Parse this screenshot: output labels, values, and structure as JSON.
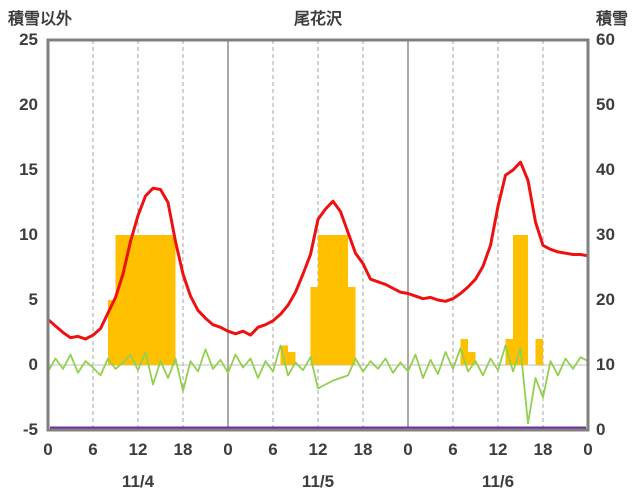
{
  "chart_data": {
    "type": "line",
    "title": "尾花沢",
    "left_axis": {
      "label": "積雪以外",
      "min": -5,
      "max": 25,
      "ticks": [
        25,
        20,
        15,
        10,
        5,
        0,
        -5
      ]
    },
    "right_axis": {
      "label": "積雪",
      "min": 0,
      "max": 60,
      "ticks": [
        60,
        50,
        40,
        30,
        20,
        10,
        0
      ]
    },
    "x_axis": {
      "hours_total": 72,
      "tick_step": 6,
      "tick_labels": [
        "0",
        "6",
        "12",
        "18",
        "0",
        "6",
        "12",
        "18",
        "0",
        "6",
        "12",
        "18",
        "0"
      ],
      "date_labels": [
        "11/4",
        "11/5",
        "11/6"
      ]
    },
    "colors": {
      "border": "#808080",
      "grid_dashed": "#a6a6a6",
      "grid_day": "#8c8c8c",
      "zero_line": "#bfbfbf",
      "temperature": "#ee1111",
      "sunshine": "#ffc000",
      "snowfall": "#92d050",
      "snowdepth": "#7030a0"
    },
    "series": [
      {
        "name": "temperature-line",
        "type": "line",
        "axis": "left",
        "color_key": "temperature",
        "values": [
          3.5,
          3.0,
          2.5,
          2.1,
          2.2,
          2.0,
          2.3,
          2.8,
          4.0,
          5.2,
          7.0,
          9.5,
          11.5,
          13.0,
          13.6,
          13.5,
          12.5,
          9.5,
          7.0,
          5.3,
          4.2,
          3.6,
          3.1,
          2.9,
          2.6,
          2.4,
          2.6,
          2.3,
          2.9,
          3.1,
          3.4,
          3.9,
          4.6,
          5.6,
          7.0,
          8.5,
          11.2,
          12.0,
          12.6,
          11.8,
          10.2,
          8.6,
          7.8,
          6.6,
          6.4,
          6.2,
          5.9,
          5.6,
          5.5,
          5.3,
          5.1,
          5.2,
          5.0,
          4.9,
          5.1,
          5.5,
          6.0,
          6.6,
          7.6,
          9.2,
          12.2,
          14.6,
          15.0,
          15.6,
          14.2,
          11.0,
          9.2,
          8.9,
          8.7,
          8.6,
          8.5,
          8.5,
          8.4
        ]
      },
      {
        "name": "sunshine-bars",
        "type": "bar",
        "axis": "left",
        "color_key": "sunshine",
        "bars": [
          [
            8,
            5
          ],
          [
            9,
            10
          ],
          [
            10,
            10
          ],
          [
            11,
            10
          ],
          [
            12,
            10
          ],
          [
            13,
            10
          ],
          [
            14,
            10
          ],
          [
            15,
            10
          ],
          [
            16,
            10
          ],
          [
            31,
            1.5
          ],
          [
            32,
            1
          ],
          [
            35,
            6
          ],
          [
            36,
            10
          ],
          [
            37,
            10
          ],
          [
            38,
            10
          ],
          [
            39,
            10
          ],
          [
            40,
            6
          ],
          [
            55,
            2
          ],
          [
            56,
            1
          ],
          [
            61,
            2
          ],
          [
            62,
            10
          ],
          [
            63,
            10
          ],
          [
            65,
            2
          ]
        ]
      },
      {
        "name": "snowfall-line",
        "type": "line",
        "axis": "left",
        "color_key": "snowfall",
        "values": [
          -0.5,
          0.5,
          -0.3,
          0.8,
          -0.6,
          0.3,
          -0.2,
          -0.8,
          0.5,
          -0.3,
          0.2,
          0.8,
          -0.4,
          1.0,
          -1.5,
          0.3,
          -1.0,
          0.5,
          -2.0,
          0.3,
          -0.5,
          1.2,
          -0.3,
          0.4,
          -0.6,
          0.8,
          -0.2,
          0.5,
          -1.0,
          0.3,
          -0.5,
          1.5,
          -0.8,
          0.2,
          -0.4,
          0.6,
          -1.8,
          -1.5,
          -1.2,
          -1.0,
          -0.8,
          0.5,
          -0.5,
          0.3,
          -0.3,
          0.5,
          -0.6,
          0.2,
          -0.5,
          0.8,
          -1.0,
          0.4,
          -0.7,
          1.0,
          -0.3,
          1.3,
          -0.5,
          0.3,
          -0.8,
          0.5,
          -0.4,
          1.5,
          -0.5,
          1.3,
          -4.5,
          -1.0,
          -2.5,
          0.3,
          -0.8,
          0.5,
          -0.3,
          0.6,
          0.3
        ]
      },
      {
        "name": "snowdepth-line",
        "type": "constant-line",
        "axis": "right",
        "color_key": "snowdepth",
        "constant": 0
      }
    ]
  }
}
